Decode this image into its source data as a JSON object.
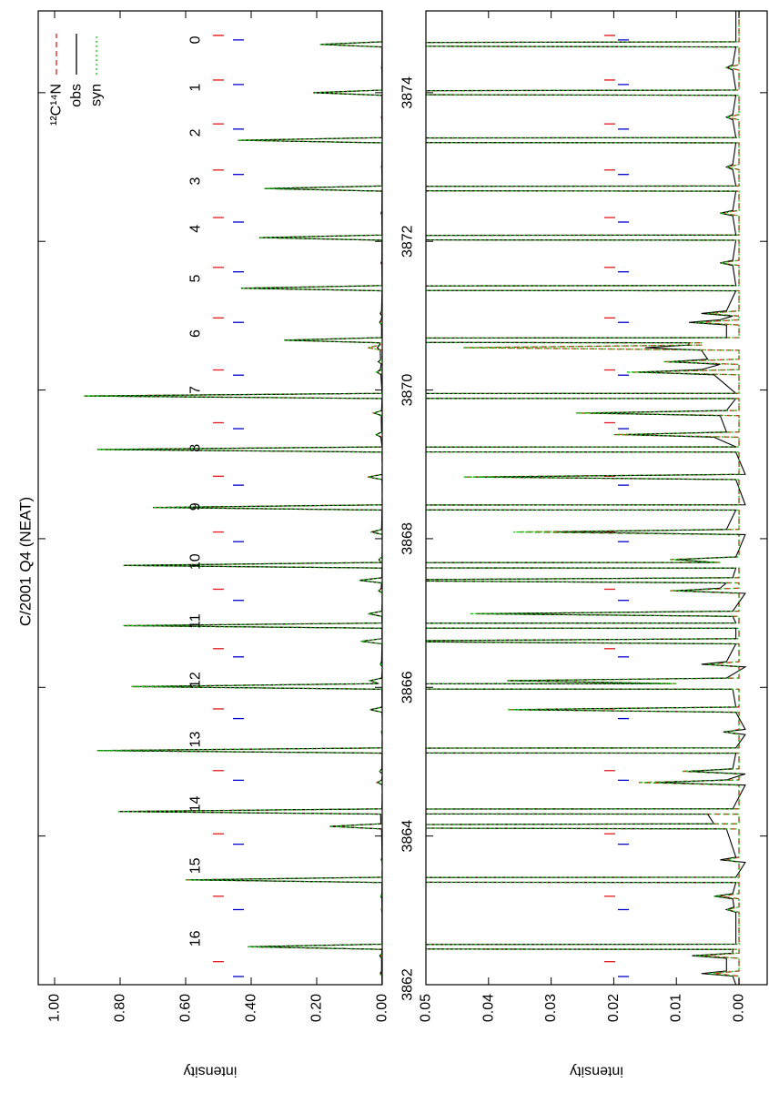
{
  "chart_data": {
    "type": "line",
    "title": "C/2001 Q4 (NEAT)",
    "xlim": [
      3862,
      3875.1
    ],
    "xticks": [
      3862,
      3864,
      3866,
      3868,
      3870,
      3872,
      3874
    ],
    "legend": "upper right",
    "panels": [
      {
        "ylabel": "intensity",
        "ylim": [
          0,
          1.05
        ],
        "yticks": [
          {
            "value": 0,
            "label": "0.00"
          },
          {
            "value": 0.2,
            "label": "0.20"
          },
          {
            "value": 0.4,
            "label": "0.40"
          },
          {
            "value": 0.6,
            "label": "0.60"
          },
          {
            "value": 0.8,
            "label": "0.80"
          },
          {
            "value": 1,
            "label": "1.00"
          }
        ]
      },
      {
        "ylabel": "intensity",
        "ylim": [
          -0.0045,
          0.05
        ],
        "yticks": [
          {
            "value": 0,
            "label": "0.00"
          },
          {
            "value": 0.01,
            "label": "0.01"
          },
          {
            "value": 0.02,
            "label": "0.02"
          },
          {
            "value": 0.03,
            "label": "0.03"
          },
          {
            "value": 0.04,
            "label": "0.04"
          },
          {
            "value": 0.05,
            "label": "0.05"
          }
        ]
      }
    ],
    "x": [
      3862.0,
      3862.115,
      3862.15,
      3862.185,
      3862.355,
      3862.39,
      3862.425,
      3862.475,
      3862.51,
      3862.545,
      3862.975,
      3863.01,
      3863.045,
      3863.155,
      3863.19,
      3863.225,
      3863.375,
      3863.41,
      3863.445,
      3863.645,
      3863.68,
      3863.715,
      3864.095,
      3864.13,
      3864.165,
      3864.295,
      3864.33,
      3864.365,
      3864.685,
      3864.72,
      3864.755,
      3864.835,
      3864.87,
      3864.905,
      3865.115,
      3865.15,
      3865.185,
      3865.365,
      3865.4,
      3865.435,
      3865.665,
      3865.7,
      3865.735,
      3865.975,
      3866.01,
      3866.05,
      3866.09,
      3866.125,
      3866.275,
      3866.31,
      3866.345,
      3866.585,
      3866.62,
      3866.655,
      3866.795,
      3866.83,
      3866.865,
      3866.955,
      3866.99,
      3867.025,
      3867.265,
      3867.3,
      3867.335,
      3867.405,
      3867.44,
      3867.475,
      3867.605,
      3867.64,
      3867.68,
      3867.72,
      3867.755,
      3868.055,
      3868.09,
      3868.125,
      3868.385,
      3868.42,
      3868.455,
      3868.795,
      3868.83,
      3868.865,
      3869.165,
      3869.2,
      3869.235,
      3869.365,
      3869.4,
      3869.435,
      3869.655,
      3869.69,
      3869.725,
      3869.885,
      3869.92,
      3869.955,
      3870.205,
      3870.24,
      3870.275,
      3870.345,
      3870.38,
      3870.415,
      3870.535,
      3870.57,
      3870.605,
      3870.635,
      3870.67,
      3870.705,
      3870.875,
      3870.91,
      3870.945,
      3870.995,
      3871.03,
      3871.065,
      3871.335,
      3871.37,
      3871.405,
      3871.675,
      3871.71,
      3871.745,
      3872.015,
      3872.05,
      3872.085,
      3872.345,
      3872.38,
      3872.415,
      3872.675,
      3872.71,
      3872.745,
      3872.965,
      3873.0,
      3873.035,
      3873.325,
      3873.36,
      3873.395,
      3873.635,
      3873.67,
      3873.705,
      3873.965,
      3874.0,
      3874.035,
      3874.305,
      3874.34,
      3874.375,
      3874.615,
      3874.65,
      3874.685,
      3875.1
    ],
    "series": [
      {
        "name": "¹²C¹⁴N",
        "color": "#e41a1c",
        "style": "dashed",
        "values": [
          0,
          0,
          0.004,
          0,
          0,
          0.006,
          0,
          0,
          0.41,
          0,
          0,
          0.002,
          0,
          0,
          0.003,
          0,
          0,
          0.6,
          0,
          0,
          0.002,
          0,
          0,
          0.16,
          0,
          0,
          0.81,
          0,
          0,
          0.016,
          0,
          0,
          0.009,
          0,
          0,
          0.87,
          0,
          0,
          0.002,
          0,
          0,
          0.037,
          0,
          0,
          0.765,
          0.01,
          0.037,
          0,
          0,
          0.005,
          0,
          0,
          0.065,
          0,
          0,
          0.79,
          0,
          0,
          0.042,
          0,
          0,
          0.011,
          0,
          0,
          0.07,
          0,
          0,
          0.79,
          0.003,
          0.011,
          0,
          0,
          0.035,
          0,
          0,
          0.7,
          0,
          0,
          0.044,
          0,
          0,
          0.87,
          0,
          0,
          0.02,
          0,
          0,
          0.026,
          0,
          0,
          0.91,
          0,
          0,
          0.017,
          0,
          0,
          0.012,
          0,
          0,
          0.044,
          0.006,
          0.006,
          0.3,
          0,
          0,
          0.007,
          0,
          0,
          0.005,
          0,
          0,
          0.43,
          0,
          0,
          0.003,
          0,
          0,
          0.375,
          0,
          0,
          0.003,
          0,
          0,
          0.36,
          0,
          0,
          0.002,
          0,
          0,
          0.44,
          0,
          0,
          0.002,
          0,
          0,
          0.21,
          0,
          0,
          0.002,
          0,
          0,
          0.19,
          0,
          0
        ]
      },
      {
        "name": "obs",
        "color": "#000000",
        "style": "solid",
        "values": [
          0.0005,
          0.001,
          0.006,
          0.002,
          0.002,
          0.0075,
          0.001,
          0.001,
          0.41,
          0.0005,
          0.0005,
          0.002,
          0.0008,
          0.001,
          0.004,
          0.001,
          0.0005,
          0.59,
          0.0005,
          -0.001,
          0.003,
          0.0005,
          0.002,
          0.16,
          0.004,
          0.005,
          0.8,
          0.001,
          -0.001,
          0.013,
          0.002,
          -0.001,
          0.008,
          0.001,
          0.0005,
          0.87,
          0.0005,
          -0.001,
          0.0025,
          -0.001,
          0.0005,
          0.036,
          0.0005,
          0.001,
          0.765,
          0.011,
          0.037,
          0.002,
          -0.001,
          0.006,
          0.002,
          0.0005,
          0.065,
          0.0005,
          0.0005,
          0.79,
          0.0005,
          0.001,
          0.042,
          0.001,
          -0.001,
          0.01,
          0.003,
          0.002,
          0.07,
          0.001,
          0.0005,
          0.79,
          0.004,
          0.01,
          0.0005,
          -0.001,
          0.029,
          0.002,
          0.0005,
          0.7,
          -0.001,
          0.0005,
          0.042,
          -0.001,
          0.0005,
          0.87,
          0.0005,
          0.004,
          0.018,
          0.002,
          0.003,
          0.024,
          0.002,
          0.0005,
          0.91,
          0.0005,
          0.004,
          0.016,
          0.006,
          0.003,
          0.011,
          0.005,
          0.006,
          0.015,
          0.008,
          0.008,
          0.3,
          0.002,
          0.002,
          0.008,
          0.003,
          0.001,
          0.006,
          0.002,
          0.0005,
          0.43,
          0.0005,
          0.001,
          0.003,
          0.001,
          0.0005,
          0.375,
          0.0005,
          0.001,
          0.003,
          0.001,
          0.0005,
          0.36,
          0.0005,
          0.001,
          0.002,
          0.001,
          0.0005,
          0.44,
          0.0005,
          0.001,
          0.002,
          0.001,
          0.0005,
          0.21,
          0.0005,
          0.001,
          0.002,
          0.001,
          0.0005,
          0.19,
          0.0005,
          0.0005
        ]
      },
      {
        "name": "syn",
        "color": "#00cc00",
        "style": "dotted",
        "values": [
          0,
          0,
          0.005,
          0,
          0,
          0.007,
          0,
          0,
          0.41,
          0,
          0,
          0.002,
          0,
          0,
          0.004,
          0,
          0,
          0.6,
          0,
          0,
          0.002,
          0,
          0,
          0.16,
          0,
          0,
          0.81,
          0,
          0,
          0.016,
          0,
          0,
          0.009,
          0,
          0,
          0.87,
          0,
          0,
          0.002,
          0,
          0,
          0.037,
          0,
          0,
          0.765,
          0.01,
          0.037,
          0,
          0,
          0.005,
          0,
          0,
          0.065,
          0,
          0,
          0.79,
          0,
          0,
          0.043,
          0,
          0,
          0.011,
          0,
          0,
          0.07,
          0,
          0,
          0.79,
          0.003,
          0.011,
          0,
          0,
          0.036,
          0,
          0,
          0.7,
          0,
          0,
          0.044,
          0,
          0,
          0.87,
          0,
          0,
          0.02,
          0,
          0,
          0.026,
          0,
          0,
          0.91,
          0,
          0,
          0.018,
          0,
          0,
          0.012,
          0,
          0,
          0.044,
          0.006,
          0.006,
          0.3,
          0,
          0,
          0.007,
          0,
          0,
          0.005,
          0,
          0,
          0.43,
          0,
          0,
          0.003,
          0,
          0,
          0.375,
          0,
          0,
          0.003,
          0,
          0,
          0.36,
          0,
          0,
          0.002,
          0,
          0,
          0.44,
          0,
          0,
          0.002,
          0,
          0,
          0.21,
          0,
          0,
          0.002,
          0,
          0,
          0.19,
          0,
          0
        ]
      }
    ],
    "line_markers": [
      {
        "color": "#e41a1c",
        "x": [
          3874.77,
          3874.17,
          3873.58,
          3872.96,
          3872.32,
          3871.65,
          3870.97,
          3870.27,
          3869.56,
          3868.84,
          3868.09,
          3867.32,
          3866.52,
          3865.71,
          3864.88,
          3864.03,
          3863.19,
          3862.31
        ]
      },
      {
        "color": "#0000cc",
        "x": [
          3874.71,
          3874.11,
          3873.51,
          3872.9,
          3872.26,
          3871.59,
          3870.91,
          3870.2,
          3869.48,
          3868.72,
          3867.96,
          3867.17,
          3866.41,
          3865.58,
          3864.75,
          3863.89,
          3863.01,
          3862.11
        ]
      }
    ],
    "annotations": [
      {
        "text": "0",
        "x": 3874.71
      },
      {
        "text": "1",
        "x": 3874.07
      },
      {
        "text": "2",
        "x": 3873.46
      },
      {
        "text": "3",
        "x": 3872.81
      },
      {
        "text": "4",
        "x": 3872.17
      },
      {
        "text": "5",
        "x": 3871.5
      },
      {
        "text": "6",
        "x": 3870.76
      },
      {
        "text": "7",
        "x": 3870.0
      },
      {
        "text": "8",
        "x": 3869.22
      },
      {
        "text": "9",
        "x": 3868.43
      },
      {
        "text": "10",
        "x": 3867.69
      },
      {
        "text": "11",
        "x": 3866.89
      },
      {
        "text": "12",
        "x": 3866.1
      },
      {
        "text": "13",
        "x": 3865.3
      },
      {
        "text": "14",
        "x": 3864.43
      },
      {
        "text": "15",
        "x": 3863.6
      },
      {
        "text": "16",
        "x": 3862.62
      }
    ]
  }
}
